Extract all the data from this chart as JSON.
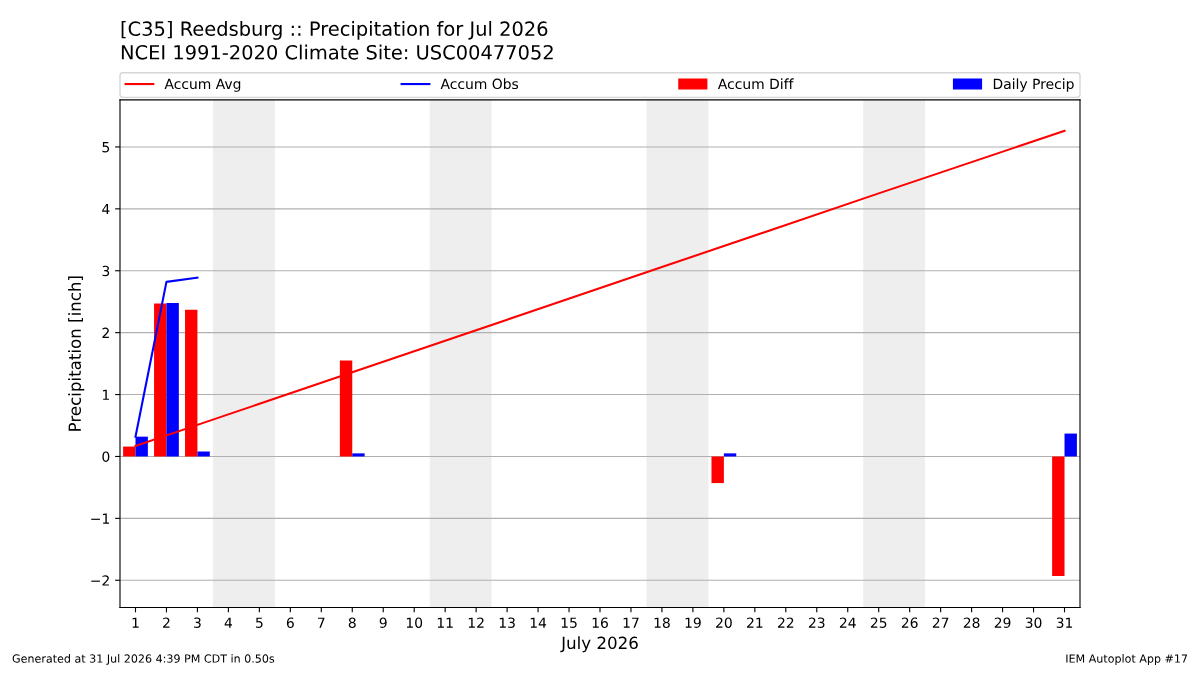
{
  "chart_data": {
    "type": "bar",
    "title": "[C35] Reedsburg :: Precipitation for Jul 2026",
    "subtitle": "NCEI 1991-2020 Climate Site: USC00477052",
    "xlabel": "July 2026",
    "ylabel": "Precipitation [inch]",
    "series": [
      {
        "name": "Accum Avg",
        "type": "line",
        "color": "#ff0000",
        "x": [
          1,
          3,
          8,
          13,
          18,
          20,
          25,
          31
        ],
        "values": [
          0.17,
          0.51,
          1.36,
          2.21,
          3.06,
          3.4,
          4.25,
          5.26
        ]
      },
      {
        "name": "Accum Obs",
        "type": "line",
        "color": "#0000ff",
        "x": [
          1,
          2,
          3
        ],
        "values": [
          0.32,
          2.82,
          2.89
        ]
      },
      {
        "name": "Accum Diff",
        "color": "#ff0000",
        "x": [
          1,
          2,
          3,
          8,
          20,
          31
        ],
        "values": [
          0.16,
          2.47,
          2.37,
          1.55,
          -0.43,
          -1.93
        ]
      },
      {
        "name": "Daily Precip",
        "color": "#0000ff",
        "x": [
          1,
          2,
          3,
          8,
          20,
          31
        ],
        "values": [
          0.32,
          2.48,
          0.08,
          0.05,
          0.05,
          0.37
        ]
      }
    ],
    "xlim": [
      0.5,
      31.5
    ],
    "xticks": [
      1,
      2,
      3,
      4,
      5,
      6,
      7,
      8,
      9,
      10,
      11,
      12,
      13,
      14,
      15,
      16,
      17,
      18,
      19,
      20,
      21,
      22,
      23,
      24,
      25,
      26,
      27,
      28,
      29,
      30,
      31
    ],
    "ylim": [
      -2.44,
      5.76
    ],
    "yticks": [
      -2,
      -1,
      0,
      1,
      2,
      3,
      4,
      5
    ],
    "bands": [
      {
        "axis": "x",
        "from": 3.5,
        "to": 5.5,
        "color": "#eeeeee"
      },
      {
        "axis": "x",
        "from": 10.5,
        "to": 12.5,
        "color": "#eeeeee"
      },
      {
        "axis": "x",
        "from": 17.5,
        "to": 19.5,
        "color": "#eeeeee"
      },
      {
        "axis": "x",
        "from": 24.5,
        "to": 26.5,
        "color": "#eeeeee"
      }
    ],
    "grid": "y",
    "legend": "top",
    "annotations": [
      "Generated at 31 Jul 2026 4:39 PM CDT in 0.50s",
      "IEM Autoplot App #17"
    ]
  }
}
